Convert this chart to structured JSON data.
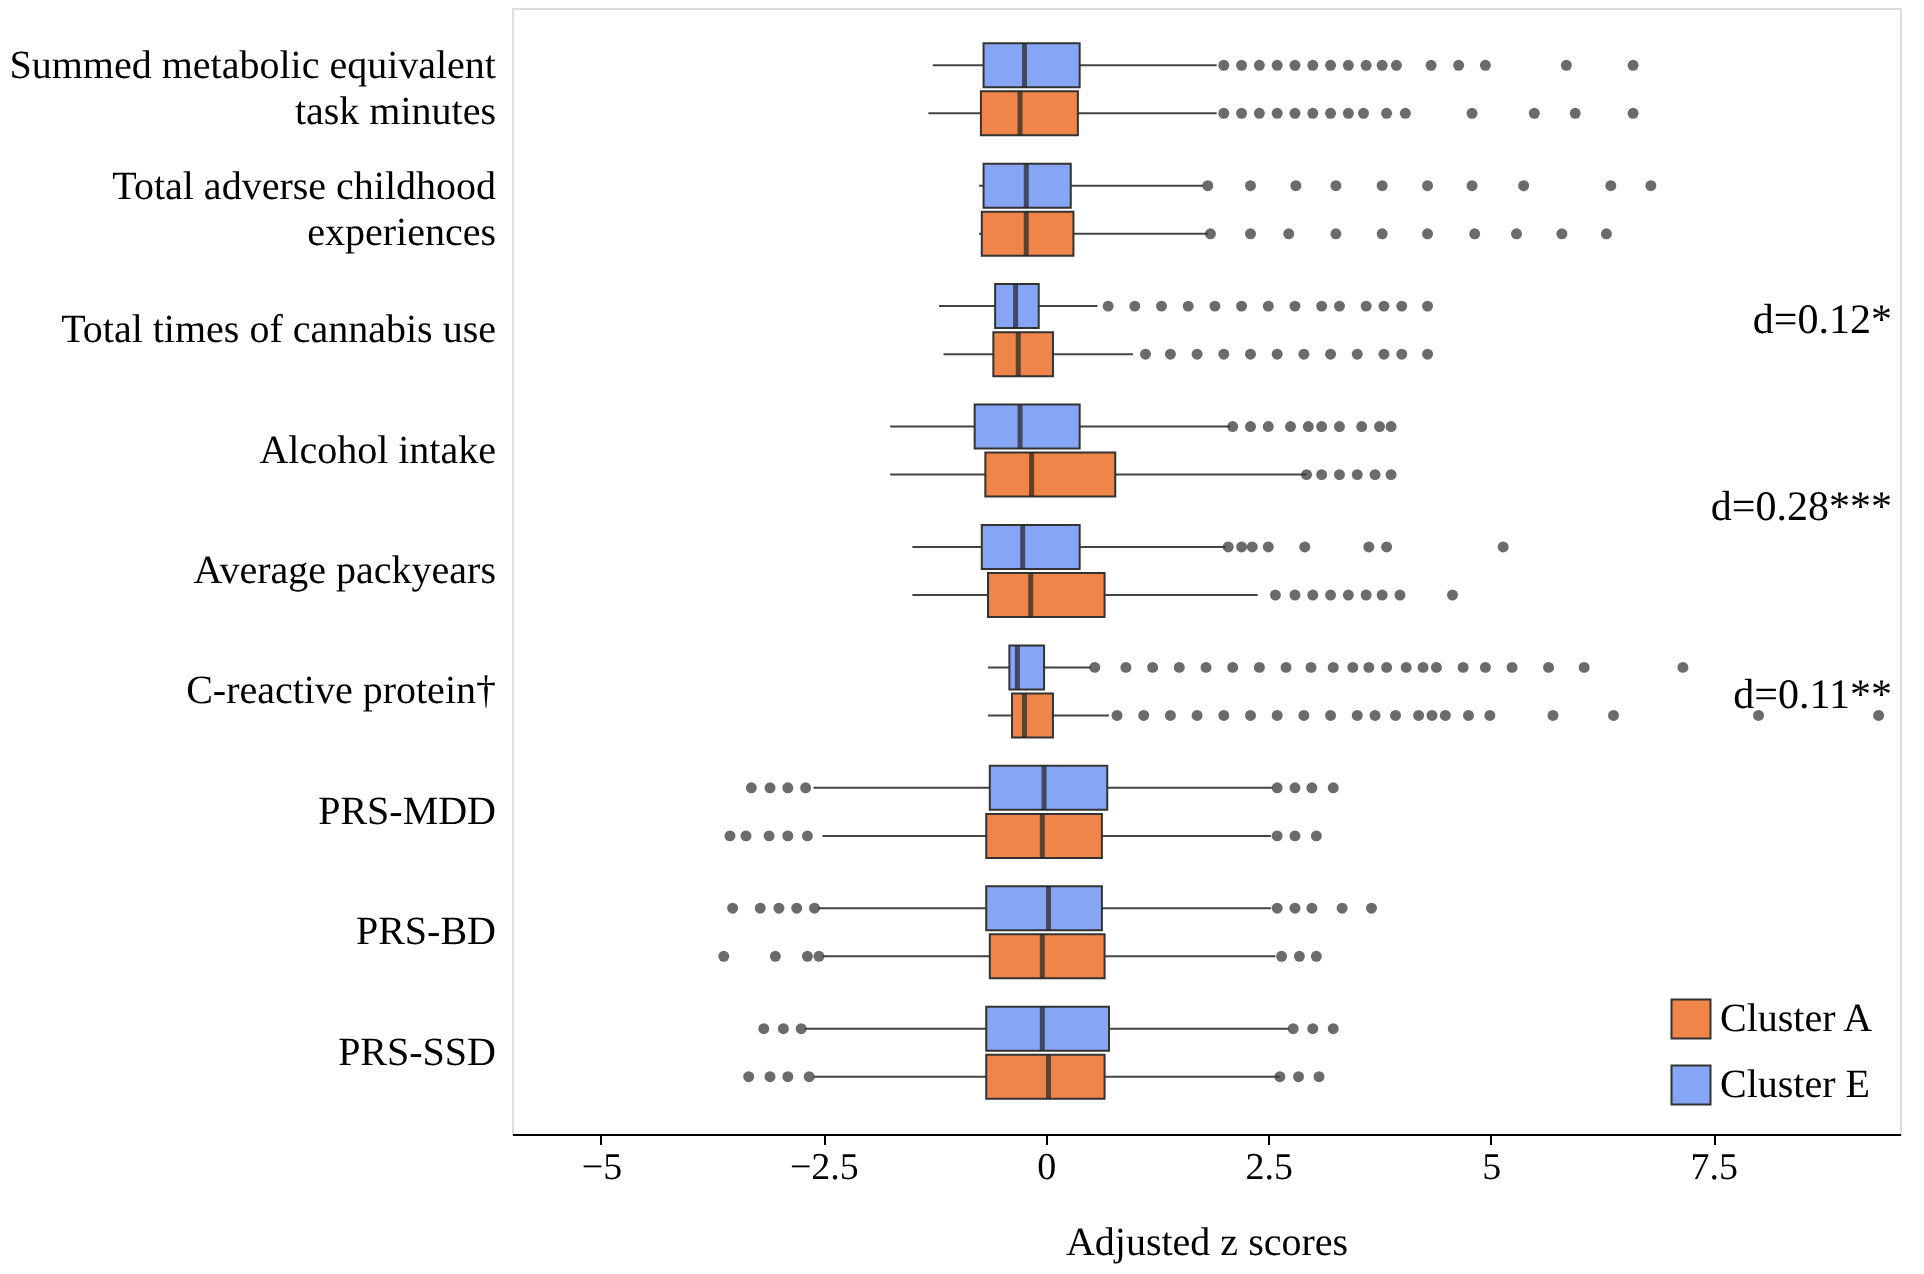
{
  "chart_data": {
    "type": "box",
    "orientation": "horizontal",
    "xlabel": "Adjusted z scores",
    "xlim": [
      -6,
      9.6
    ],
    "xticks": [
      {
        "value": -5,
        "label": "−5"
      },
      {
        "value": -2.5,
        "label": "−2.5"
      },
      0,
      2.5,
      5,
      7.5
    ],
    "categories": [
      "Summed metabolic equivalent task minutes",
      "Total adverse childhood experiences",
      "Total times of cannabis use",
      "Alcohol intake",
      "Average packyears",
      "C-reactive protein†",
      "PRS-MDD",
      "PRS-BD",
      "PRS-SSD"
    ],
    "legend": "bottom right",
    "grid": false,
    "series": [
      {
        "name": "Cluster A",
        "color": "#ef8548",
        "boxes": [
          {
            "low": -1.32,
            "q1": -0.73,
            "median": -0.29,
            "q3": 0.36,
            "high": 1.92,
            "outliers": [
              2.0,
              2.2,
              2.4,
              2.6,
              2.8,
              3.0,
              3.2,
              3.4,
              3.57,
              3.83,
              4.04,
              4.79,
              5.49,
              5.95,
              6.6
            ]
          },
          {
            "low": -0.75,
            "q1": -0.72,
            "median": -0.22,
            "q3": 0.31,
            "high": 1.82,
            "outliers": [
              1.85,
              2.3,
              2.73,
              3.26,
              3.78,
              4.29,
              4.82,
              5.29,
              5.8,
              6.3
            ]
          },
          {
            "low": -1.15,
            "q1": -0.59,
            "median": -0.31,
            "q3": 0.08,
            "high": 0.98,
            "outliers": [
              1.12,
              1.4,
              1.7,
              2.0,
              2.3,
              2.6,
              2.9,
              3.2,
              3.5,
              3.8,
              4.0,
              4.29
            ]
          },
          {
            "low": -1.75,
            "q1": -0.68,
            "median": -0.16,
            "q3": 0.78,
            "high": 2.93,
            "outliers": [
              2.93,
              3.1,
              3.3,
              3.5,
              3.7,
              3.88
            ]
          },
          {
            "low": -1.5,
            "q1": -0.65,
            "median": -0.17,
            "q3": 0.66,
            "high": 2.38,
            "outliers": [
              2.58,
              2.8,
              3.0,
              3.2,
              3.4,
              3.6,
              3.78,
              3.98,
              4.57
            ]
          },
          {
            "low": -0.65,
            "q1": -0.38,
            "median": -0.24,
            "q3": 0.08,
            "high": 0.71,
            "outliers": [
              0.8,
              1.1,
              1.4,
              1.7,
              2.0,
              2.3,
              2.6,
              2.9,
              3.2,
              3.5,
              3.7,
              3.93,
              4.19,
              4.34,
              4.49,
              4.75,
              4.99,
              5.7,
              6.38,
              8.01,
              9.36
            ]
          },
          {
            "low": -2.51,
            "q1": -0.67,
            "median": -0.04,
            "q3": 0.63,
            "high": 2.53,
            "outliers": [
              -3.55,
              -3.37,
              -3.11,
              -2.9,
              -2.68,
              2.6,
              2.8,
              3.04
            ]
          },
          {
            "low": -2.51,
            "q1": -0.63,
            "median": -0.04,
            "q3": 0.66,
            "high": 2.58,
            "outliers": [
              -3.62,
              -3.04,
              -2.68,
              -2.55,
              2.65,
              2.85,
              3.04
            ]
          },
          {
            "low": -2.61,
            "q1": -0.67,
            "median": 0.03,
            "q3": 0.66,
            "high": 2.63,
            "outliers": [
              -3.34,
              -3.1,
              -2.9,
              -2.66,
              2.63,
              2.84,
              3.07
            ]
          }
        ]
      },
      {
        "name": "Cluster E",
        "color": "#87a5f5",
        "boxes": [
          {
            "low": -1.27,
            "q1": -0.7,
            "median": -0.24,
            "q3": 0.38,
            "high": 1.92,
            "outliers": [
              2.0,
              2.2,
              2.4,
              2.6,
              2.8,
              3.0,
              3.2,
              3.4,
              3.6,
              3.78,
              3.94,
              4.33,
              4.64,
              4.94,
              5.85,
              6.6
            ]
          },
          {
            "low": -0.75,
            "q1": -0.7,
            "median": -0.22,
            "q3": 0.28,
            "high": 1.77,
            "outliers": [
              1.82,
              2.3,
              2.81,
              3.26,
              3.78,
              4.29,
              4.79,
              5.37,
              6.35,
              6.8
            ]
          },
          {
            "low": -1.2,
            "q1": -0.57,
            "median": -0.34,
            "q3": -0.08,
            "high": 0.58,
            "outliers": [
              0.7,
              1.0,
              1.3,
              1.6,
              1.9,
              2.2,
              2.5,
              2.8,
              3.1,
              3.3,
              3.6,
              3.8,
              4.0,
              4.29
            ]
          },
          {
            "low": -1.75,
            "q1": -0.8,
            "median": -0.29,
            "q3": 0.38,
            "high": 2.07,
            "outliers": [
              2.1,
              2.3,
              2.5,
              2.75,
              2.95,
              3.1,
              3.3,
              3.55,
              3.75,
              3.88
            ]
          },
          {
            "low": -1.5,
            "q1": -0.72,
            "median": -0.26,
            "q3": 0.38,
            "high": 2.02,
            "outliers": [
              2.05,
              2.2,
              2.32,
              2.5,
              2.91,
              3.63,
              3.83,
              5.14
            ]
          },
          {
            "low": -0.65,
            "q1": -0.41,
            "median": -0.32,
            "q3": -0.02,
            "high": 0.51,
            "outliers": [
              0.55,
              0.9,
              1.2,
              1.5,
              1.8,
              2.1,
              2.4,
              2.7,
              2.98,
              3.23,
              3.45,
              3.63,
              3.83,
              4.05,
              4.24,
              4.39,
              4.69,
              4.94,
              5.24,
              5.65,
              6.05,
              7.16
            ]
          },
          {
            "low": -2.61,
            "q1": -0.63,
            "median": -0.02,
            "q3": 0.69,
            "high": 2.55,
            "outliers": [
              -3.31,
              -3.1,
              -2.9,
              -2.7,
              2.6,
              2.8,
              2.99,
              3.23
            ]
          },
          {
            "low": -2.56,
            "q1": -0.67,
            "median": 0.03,
            "q3": 0.63,
            "high": 2.53,
            "outliers": [
              -3.52,
              -3.21,
              -3.0,
              -2.8,
              -2.6,
              2.6,
              2.8,
              2.99,
              3.33,
              3.66
            ]
          },
          {
            "low": -2.71,
            "q1": -0.67,
            "median": -0.04,
            "q3": 0.71,
            "high": 2.73,
            "outliers": [
              -3.17,
              -2.95,
              -2.75,
              2.78,
              3.0,
              3.23
            ]
          }
        ]
      }
    ],
    "annotations": [
      "d=0.12*",
      "d=0.28***",
      "d=0.11**"
    ]
  }
}
